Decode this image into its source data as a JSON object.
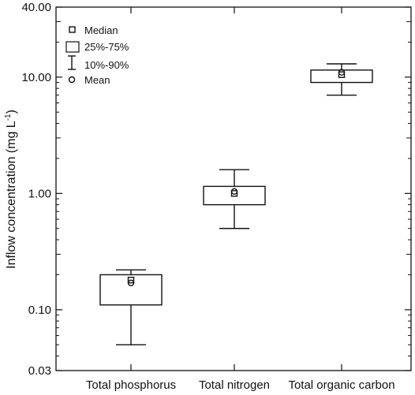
{
  "chart_data": {
    "type": "box",
    "scale": "log",
    "ylabel_main": "Inflow concentration (mg L",
    "ylabel_sup": "-1",
    "ylabel_close": ")",
    "ylim": [
      0.03,
      40
    ],
    "yticks": [
      {
        "value": 40,
        "label": "40.00"
      },
      {
        "value": 10,
        "label": "10.00"
      },
      {
        "value": 1,
        "label": "1.00"
      },
      {
        "value": 0.1,
        "label": "0.10"
      },
      {
        "value": 0.03,
        "label": "0.03"
      }
    ],
    "categories": [
      "Total phosphorus",
      "Total nitrogen",
      "Total organic carbon"
    ],
    "boxes": [
      {
        "category": "Total phosphorus",
        "p10": 0.05,
        "p25": 0.11,
        "median": 0.18,
        "p75": 0.2,
        "p90": 0.22,
        "mean": 0.17
      },
      {
        "category": "Total nitrogen",
        "p10": 0.5,
        "p25": 0.8,
        "median": 1.0,
        "p75": 1.15,
        "p90": 1.6,
        "mean": 1.04
      },
      {
        "category": "Total organic carbon",
        "p10": 7.0,
        "p25": 9.0,
        "median": 10.5,
        "p75": 11.5,
        "p90": 13.0,
        "mean": 11.0
      }
    ],
    "legend": {
      "position": "top-left",
      "items": [
        {
          "symbol": "square-marker",
          "label": "Median"
        },
        {
          "symbol": "box",
          "label": "25%-75%"
        },
        {
          "symbol": "whisker",
          "label": "10%-90%"
        },
        {
          "symbol": "circle-marker",
          "label": "Mean"
        }
      ]
    },
    "grid": false
  }
}
